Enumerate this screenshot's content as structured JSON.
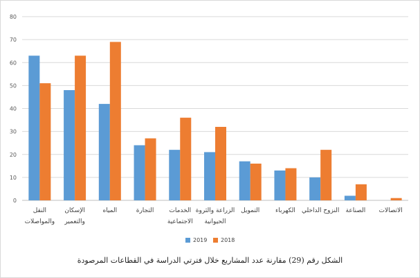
{
  "caption": "الشكل رقم (29) مقارنة عدد المشاريع خلال فترتي الدراسة في القطاعات المرصودة",
  "chart_data": {
    "type": "bar",
    "categories": [
      [
        "النقل",
        "والمواصلات"
      ],
      [
        "الإسكان",
        "والتعمير"
      ],
      [
        "المياه"
      ],
      [
        "التجارة"
      ],
      [
        "الخدمات",
        "الاجتماعية"
      ],
      [
        "الزراعة والثروة",
        "الحيوانية"
      ],
      [
        "التمويل"
      ],
      [
        "الكهرباء"
      ],
      [
        "النزوح الداخلي"
      ],
      [
        "الصناعة"
      ],
      [
        "الاتصالات"
      ]
    ],
    "series": [
      {
        "name": "2019",
        "color": "#5b9bd5",
        "values": [
          63,
          48,
          42,
          24,
          22,
          21,
          17,
          13,
          10,
          2,
          0
        ]
      },
      {
        "name": "2018",
        "color": "#ed7d31",
        "values": [
          51,
          63,
          69,
          27,
          36,
          32,
          16,
          14,
          22,
          7,
          1
        ]
      }
    ],
    "ylim": [
      0,
      80
    ],
    "yticks": [
      0,
      10,
      20,
      30,
      40,
      50,
      60,
      70,
      80
    ],
    "grid": true,
    "legend_position": "bottom-center"
  }
}
